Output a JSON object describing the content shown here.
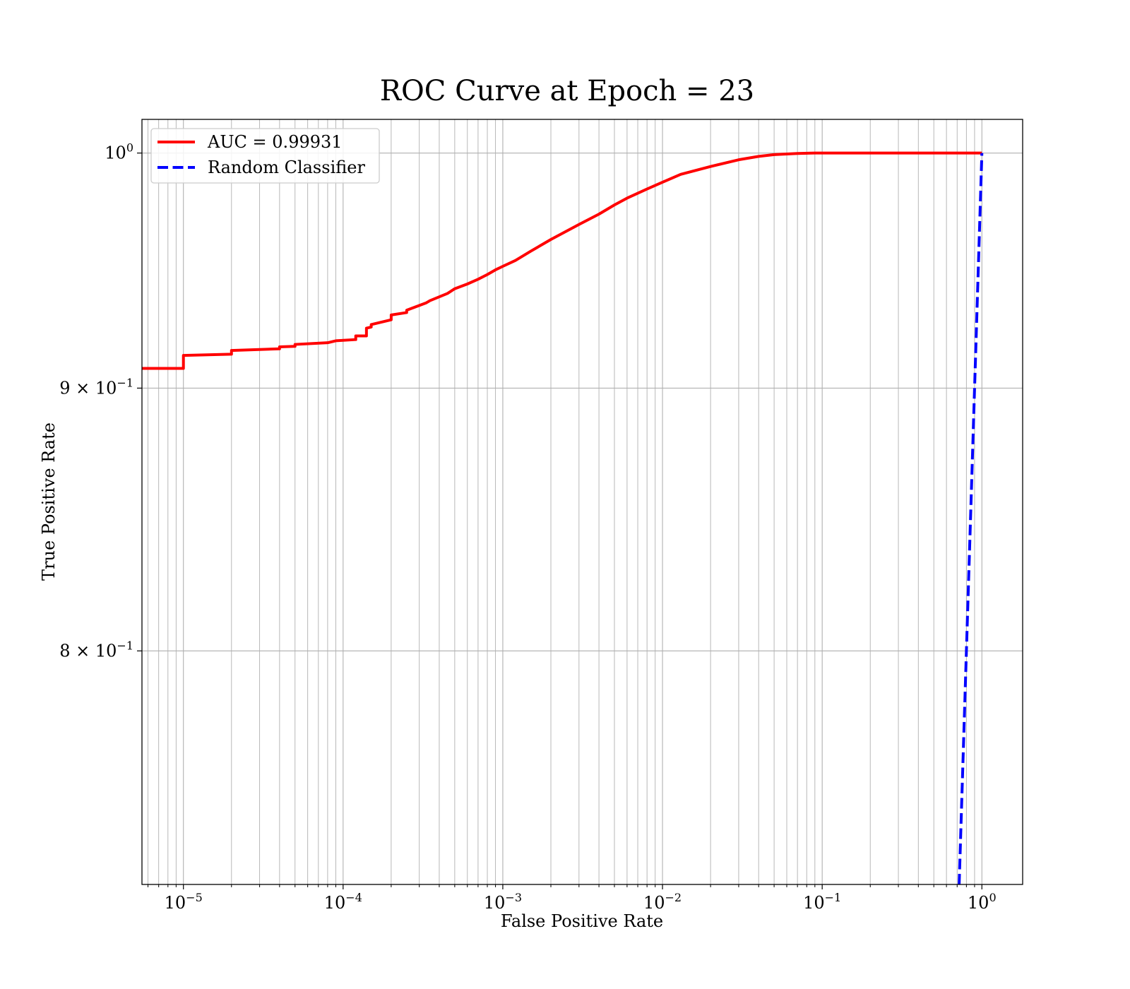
{
  "chart_data": {
    "type": "line",
    "title": "ROC Curve at Epoch = 23",
    "xlabel": "False Positive Rate",
    "ylabel": "True Positive Rate",
    "xscale": "log",
    "yscale": "log",
    "xlim": [
      5.5e-06,
      1.8
    ],
    "ylim": [
      0.7205,
      1.0152
    ],
    "grid": true,
    "grid_which": "both",
    "legend_position": "top-left",
    "x_ticks": [
      {
        "value": 1e-05,
        "base": "10",
        "exp": "−5"
      },
      {
        "value": 0.0001,
        "base": "10",
        "exp": "−4"
      },
      {
        "value": 0.001,
        "base": "10",
        "exp": "−3"
      },
      {
        "value": 0.01,
        "base": "10",
        "exp": "−2"
      },
      {
        "value": 0.1,
        "base": "10",
        "exp": "−1"
      },
      {
        "value": 1,
        "base": "10",
        "exp": "0"
      }
    ],
    "y_ticks": [
      {
        "value": 1.0,
        "base": "10",
        "exp": "0"
      },
      {
        "value": 0.9,
        "base": "9 × 10",
        "exp": "−1"
      },
      {
        "value": 0.8,
        "base": "8 × 10",
        "exp": "−1"
      }
    ],
    "series": [
      {
        "name": "AUC = 0.99931",
        "color": "#ff0000",
        "style": "solid",
        "x": [
          5.5e-06,
          1e-05,
          1e-05,
          2e-05,
          2e-05,
          4e-05,
          4e-05,
          5e-05,
          5e-05,
          8e-05,
          9e-05,
          9e-05,
          0.00012,
          0.00012,
          0.00014,
          0.00014,
          0.00015,
          0.00015,
          0.0002,
          0.0002,
          0.00025,
          0.00025,
          0.00033,
          0.00035,
          0.00045,
          0.0005,
          0.0006,
          0.0007,
          0.0008,
          0.0009,
          0.001,
          0.0012,
          0.0015,
          0.002,
          0.003,
          0.004,
          0.005,
          0.006,
          0.008,
          0.01,
          0.013,
          0.02,
          0.03,
          0.04,
          0.05,
          0.07,
          0.09,
          0.1,
          0.2,
          0.5,
          1.0
        ],
        "y": [
          0.908,
          0.908,
          0.9133,
          0.9138,
          0.9153,
          0.916,
          0.9168,
          0.917,
          0.9178,
          0.9185,
          0.9193,
          0.9193,
          0.9198,
          0.9213,
          0.9213,
          0.9245,
          0.925,
          0.926,
          0.928,
          0.93,
          0.931,
          0.932,
          0.935,
          0.936,
          0.939,
          0.941,
          0.943,
          0.945,
          0.947,
          0.949,
          0.9505,
          0.953,
          0.957,
          0.962,
          0.9685,
          0.973,
          0.977,
          0.98,
          0.984,
          0.987,
          0.9905,
          0.994,
          0.997,
          0.9985,
          0.9993,
          0.9998,
          1.0,
          1.0,
          1.0,
          1.0,
          1.0
        ]
      },
      {
        "name": "Random Classifier",
        "color": "#0000ff",
        "style": "dashed",
        "x": [
          0.7205,
          1.0
        ],
        "y": [
          0.7205,
          1.0
        ]
      }
    ]
  }
}
